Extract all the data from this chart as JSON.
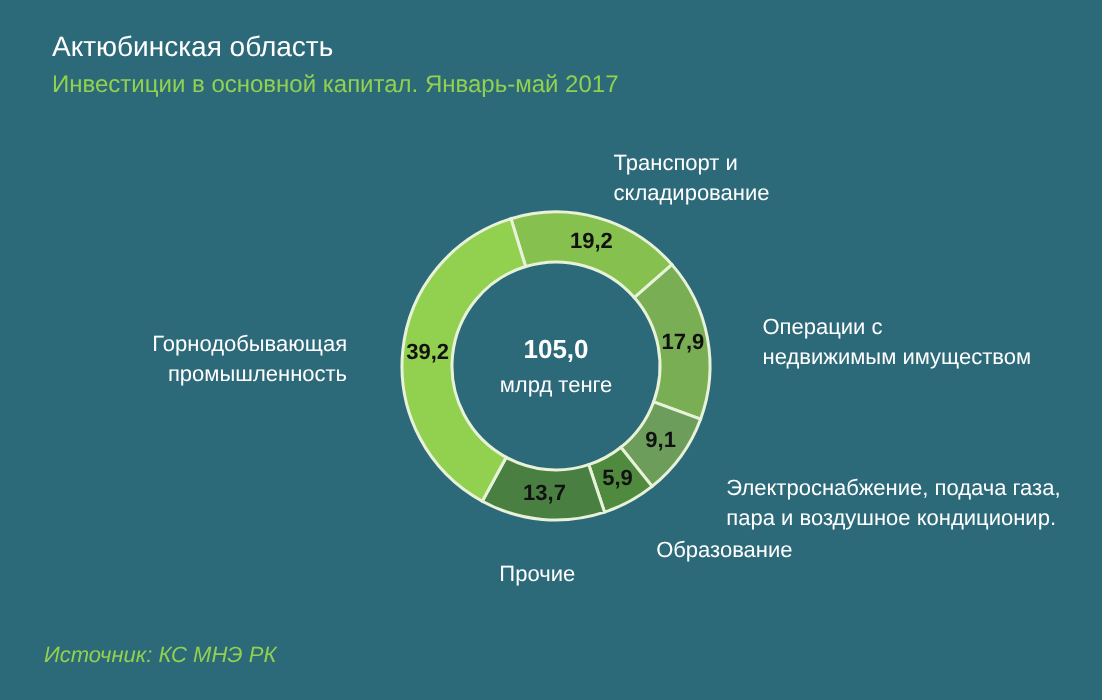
{
  "chart_data": {
    "type": "donut",
    "title": "Актюбинская область",
    "subtitle": "Инвестиции в основной капитал. Январь-май 2017",
    "categories": [
      "Транспорт и складирование",
      "Операции с недвижимым имуществом",
      "Электроснабжение, подача газа, пара и воздушное кондиционир.",
      "Образование",
      "Прочие",
      "Горнодобывающая промышленность"
    ],
    "values": [
      19.2,
      17.9,
      9.1,
      5.9,
      13.7,
      39.2
    ],
    "colors": [
      "#86c04f",
      "#7aae55",
      "#6c9d5a",
      "#4f8a3e",
      "#4a7f42",
      "#92d050"
    ],
    "value_labels": [
      "19,2",
      "17,9",
      "9,1",
      "5,9",
      "13,7",
      "39,2"
    ],
    "annotations": [
      "105,0",
      "млрд тенге",
      "Источник: КС МНЭ РК"
    ]
  }
}
